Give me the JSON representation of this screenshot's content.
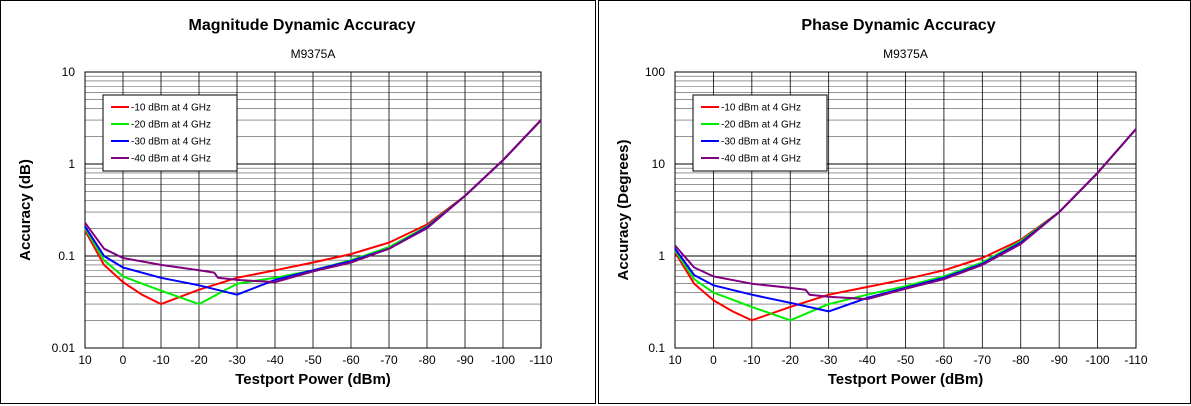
{
  "chart_data": [
    {
      "type": "line",
      "title": "Magnitude Dynamic Accuracy",
      "subtitle": "M9375A",
      "xlabel": "Testport Power (dBm)",
      "ylabel": "Accuracy (dB)",
      "xlim": [
        10,
        -110
      ],
      "ylim": [
        0.01,
        10
      ],
      "yscale": "log",
      "x_ticks": [
        "10",
        "0",
        "-10",
        "-20",
        "-30",
        "-40",
        "-50",
        "-60",
        "-70",
        "-80",
        "-90",
        "-100",
        "-110"
      ],
      "y_ticks": [
        "0.01",
        "0.1",
        "1",
        "10"
      ],
      "grid": true,
      "legend_position": "top-left",
      "series": [
        {
          "name": "-10 dBm at 4 GHz",
          "color": "#ff0000",
          "x": [
            10,
            5,
            0,
            -5,
            -10,
            -20,
            -30,
            -40,
            -50,
            -60,
            -70,
            -80,
            -90,
            -100,
            -110
          ],
          "y": [
            0.19,
            0.08,
            0.052,
            0.038,
            0.03,
            0.043,
            0.058,
            0.07,
            0.085,
            0.105,
            0.14,
            0.22,
            0.45,
            1.1,
            3.0
          ]
        },
        {
          "name": "-20 dBm at 4 GHz",
          "color": "#00ee00",
          "x": [
            10,
            5,
            0,
            -10,
            -20,
            -30,
            -40,
            -50,
            -60,
            -70,
            -80,
            -90,
            -100,
            -110
          ],
          "y": [
            0.2,
            0.09,
            0.06,
            0.042,
            0.03,
            0.05,
            0.058,
            0.07,
            0.09,
            0.125,
            0.21,
            0.45,
            1.1,
            3.0
          ]
        },
        {
          "name": "-30 dBm at 4 GHz",
          "color": "#0000ff",
          "x": [
            10,
            5,
            0,
            -10,
            -20,
            -30,
            -40,
            -50,
            -60,
            -70,
            -80,
            -90,
            -100,
            -110
          ],
          "y": [
            0.21,
            0.1,
            0.075,
            0.058,
            0.048,
            0.038,
            0.055,
            0.07,
            0.088,
            0.12,
            0.205,
            0.45,
            1.1,
            3.0
          ]
        },
        {
          "name": "-40 dBm at 4 GHz",
          "color": "#800080",
          "x": [
            10,
            5,
            0,
            -10,
            -20,
            -24,
            -25,
            -30,
            -40,
            -50,
            -60,
            -70,
            -80,
            -90,
            -100,
            -110
          ],
          "y": [
            0.23,
            0.12,
            0.095,
            0.08,
            0.07,
            0.066,
            0.058,
            0.055,
            0.052,
            0.068,
            0.085,
            0.12,
            0.2,
            0.45,
            1.1,
            3.0
          ]
        }
      ]
    },
    {
      "type": "line",
      "title": "Phase Dynamic Accuracy",
      "subtitle": "M9375A",
      "xlabel": "Testport Power (dBm)",
      "ylabel": "Accuracy (Degrees)",
      "xlim": [
        10,
        -110
      ],
      "ylim": [
        0.1,
        100
      ],
      "yscale": "log",
      "x_ticks": [
        "10",
        "0",
        "-10",
        "-20",
        "-30",
        "-40",
        "-50",
        "-60",
        "-70",
        "-80",
        "-90",
        "-100",
        "-110"
      ],
      "y_ticks": [
        "0.1",
        "1",
        "10",
        "100"
      ],
      "grid": true,
      "legend_position": "top-left",
      "series": [
        {
          "name": "-10 dBm at 4 GHz",
          "color": "#ff0000",
          "x": [
            10,
            5,
            0,
            -5,
            -10,
            -20,
            -30,
            -40,
            -50,
            -60,
            -70,
            -80,
            -90,
            -100,
            -110
          ],
          "y": [
            1.1,
            0.5,
            0.33,
            0.25,
            0.2,
            0.28,
            0.38,
            0.46,
            0.56,
            0.7,
            0.95,
            1.5,
            3.0,
            8.0,
            24.0
          ]
        },
        {
          "name": "-20 dBm at 4 GHz",
          "color": "#00ee00",
          "x": [
            10,
            5,
            0,
            -10,
            -20,
            -30,
            -40,
            -50,
            -60,
            -70,
            -80,
            -90,
            -100,
            -110
          ],
          "y": [
            1.15,
            0.56,
            0.4,
            0.28,
            0.2,
            0.3,
            0.38,
            0.47,
            0.6,
            0.85,
            1.45,
            3.0,
            8.0,
            24.0
          ]
        },
        {
          "name": "-30 dBm at 4 GHz",
          "color": "#0000ff",
          "x": [
            10,
            5,
            0,
            -10,
            -20,
            -30,
            -40,
            -50,
            -60,
            -70,
            -80,
            -90,
            -100,
            -110
          ],
          "y": [
            1.2,
            0.62,
            0.48,
            0.38,
            0.31,
            0.25,
            0.35,
            0.45,
            0.58,
            0.82,
            1.4,
            3.0,
            8.0,
            24.0
          ]
        },
        {
          "name": "-40 dBm at 4 GHz",
          "color": "#800080",
          "x": [
            10,
            5,
            0,
            -10,
            -20,
            -24,
            -25,
            -30,
            -40,
            -50,
            -60,
            -70,
            -80,
            -90,
            -100,
            -110
          ],
          "y": [
            1.3,
            0.75,
            0.6,
            0.5,
            0.45,
            0.43,
            0.38,
            0.36,
            0.34,
            0.44,
            0.56,
            0.8,
            1.35,
            3.0,
            8.0,
            24.0
          ]
        }
      ]
    }
  ]
}
